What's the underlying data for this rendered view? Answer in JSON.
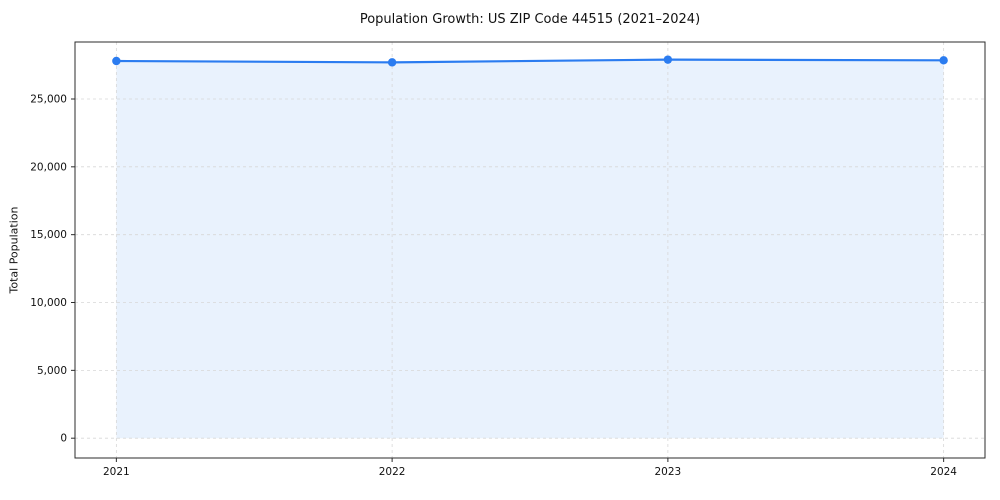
{
  "chart_data": {
    "type": "line",
    "title": "Population Growth: US ZIP Code 44515 (2021–2024)",
    "xlabel": "",
    "ylabel": "Total Population",
    "x": [
      2021,
      2022,
      2023,
      2024
    ],
    "series": [
      {
        "name": "Total Population",
        "values": [
          27800,
          27700,
          27900,
          27850
        ]
      }
    ],
    "ylim": [
      0,
      29200
    ],
    "yticks": [
      0,
      5000,
      10000,
      15000,
      20000,
      25000
    ],
    "grid": true,
    "grid_style": "dashed",
    "legend": false,
    "line_color": "#2b7cf0",
    "marker_color": "#2b7cf0",
    "fill_color": "#2b7cf0",
    "fill_opacity": 0.1,
    "grid_color": "#d7d7d7",
    "spine_color": "#2b2b2b",
    "tick_label_color": "#111111"
  }
}
